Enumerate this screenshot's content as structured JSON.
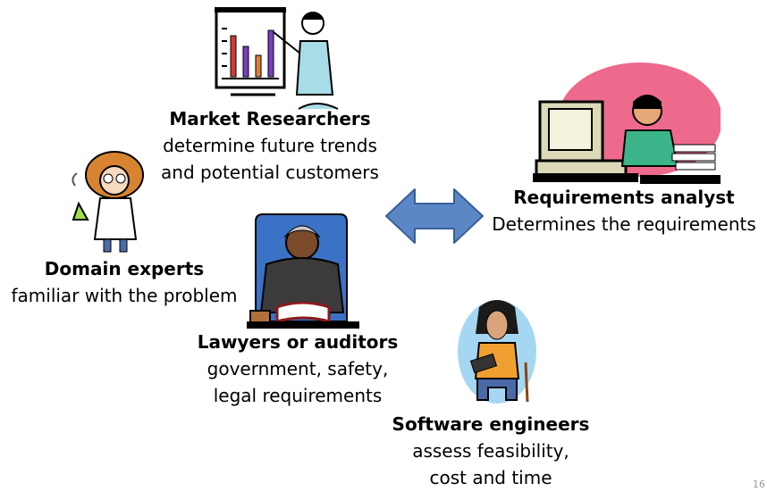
{
  "roles": {
    "market_researchers": {
      "title": "Market Researchers",
      "lines": [
        "determine future trends",
        "and potential customers"
      ]
    },
    "requirements_analyst": {
      "title": "Requirements analyst",
      "lines": [
        "Determines the requirements"
      ]
    },
    "domain_experts": {
      "title": "Domain experts",
      "lines": [
        "familiar with the problem"
      ]
    },
    "lawyers_auditors": {
      "title": "Lawyers or auditors",
      "lines": [
        "government, safety,",
        "legal requirements"
      ]
    },
    "software_engineers": {
      "title": "Software engineers",
      "lines": [
        "assess feasibility,",
        "cost and time"
      ]
    }
  },
  "page_number": "16",
  "colors": {
    "arrow": "#5b87c7",
    "analyst_backdrop": "#ee6a8d",
    "engineer_backdrop": "#a6d7f2",
    "lawyer_backdrop": "#3b72c6"
  }
}
